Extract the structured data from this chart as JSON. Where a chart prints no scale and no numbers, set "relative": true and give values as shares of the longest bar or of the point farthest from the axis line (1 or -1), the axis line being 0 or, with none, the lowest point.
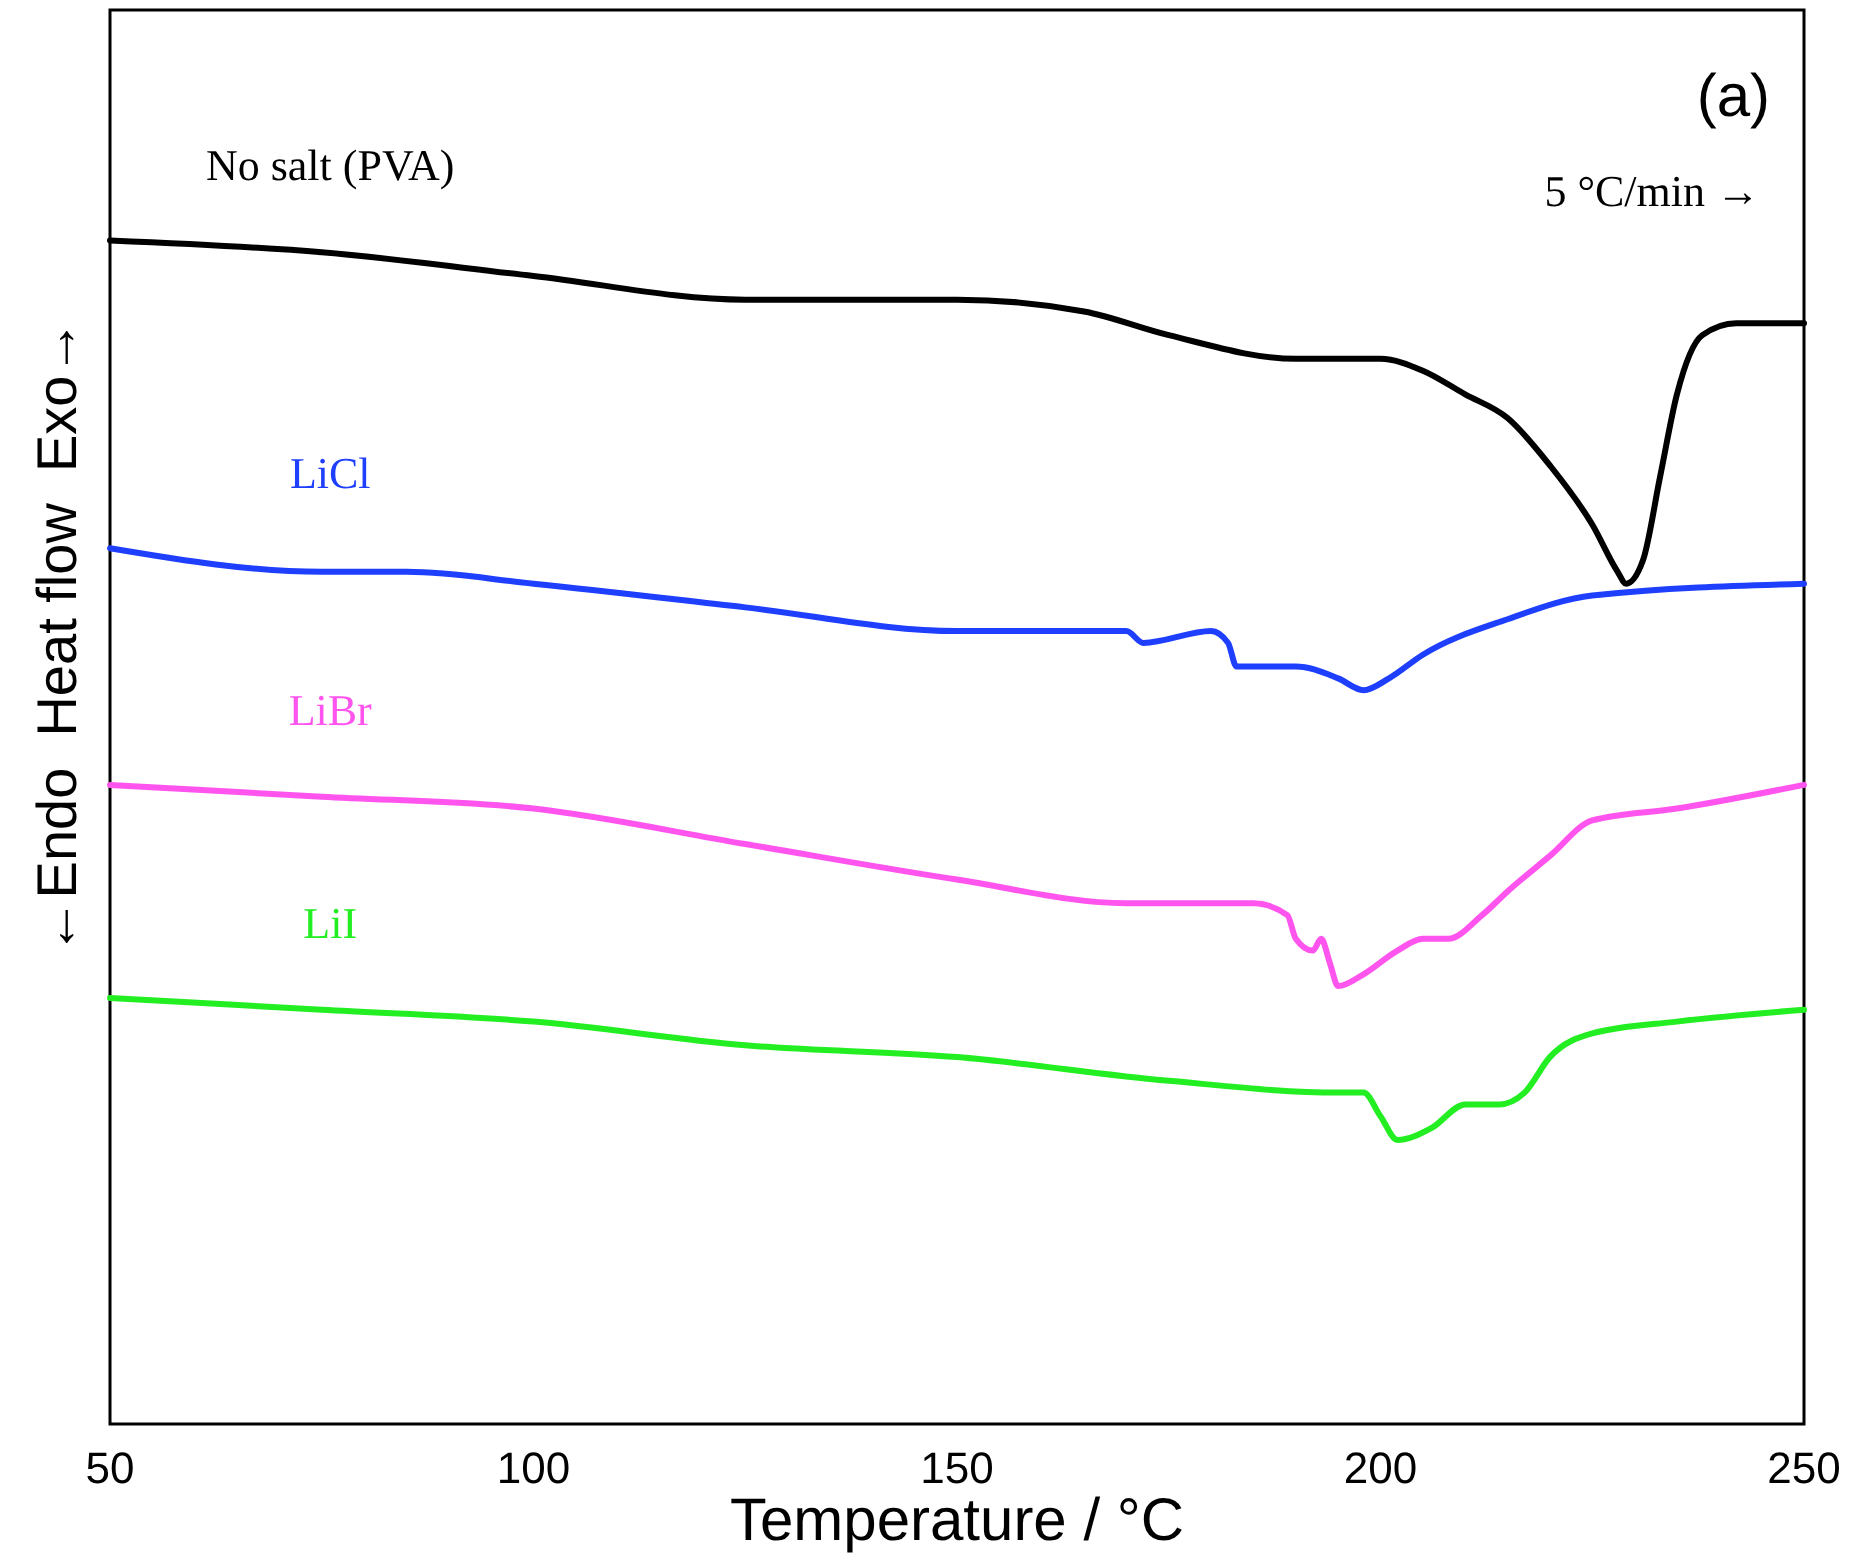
{
  "chart_data": {
    "type": "line",
    "relative": true,
    "xlabel": "Temperature / °C",
    "ylabel": "←Endo  Heat flow  Exo→",
    "xlim": [
      50,
      250
    ],
    "xticks": [
      50,
      100,
      150,
      200,
      250
    ],
    "tick_labels": "x",
    "grid": false,
    "annotations": [
      "(a)",
      "5 °C/min →"
    ],
    "series": [
      {
        "name": "No salt (PVA)",
        "color": "#000000",
        "x": [
          50,
          75,
          100,
          125,
          150,
          165,
          175,
          190,
          200,
          205,
          210,
          215,
          220,
          225,
          228,
          229,
          231,
          233,
          235,
          238,
          242,
          250
        ],
        "values": [
          1.0,
          0.99,
          0.97,
          0.95,
          0.95,
          0.94,
          0.92,
          0.9,
          0.9,
          0.89,
          0.87,
          0.85,
          0.81,
          0.76,
          0.72,
          0.71,
          0.73,
          0.8,
          0.87,
          0.92,
          0.93,
          0.93
        ]
      },
      {
        "name": "LiCl",
        "color": "#1f3fff",
        "x": [
          50,
          75,
          85,
          100,
          125,
          150,
          165,
          170,
          172,
          180,
          182,
          183,
          190,
          195,
          198,
          201,
          205,
          215,
          225,
          250
        ],
        "values": [
          0.74,
          0.72,
          0.72,
          0.71,
          0.69,
          0.67,
          0.67,
          0.67,
          0.66,
          0.67,
          0.66,
          0.64,
          0.64,
          0.63,
          0.62,
          0.63,
          0.65,
          0.68,
          0.7,
          0.71
        ]
      },
      {
        "name": "LiBr",
        "color": "#ff55ee",
        "x": [
          50,
          75,
          100,
          125,
          150,
          170,
          185,
          189,
          190,
          192,
          193,
          194,
          195,
          198,
          202,
          205,
          208,
          212,
          215,
          220,
          225,
          235,
          250
        ],
        "values": [
          0.54,
          0.53,
          0.52,
          0.49,
          0.46,
          0.44,
          0.44,
          0.43,
          0.41,
          0.4,
          0.41,
          0.39,
          0.37,
          0.38,
          0.4,
          0.41,
          0.41,
          0.43,
          0.45,
          0.48,
          0.51,
          0.52,
          0.54
        ]
      },
      {
        "name": "LiI",
        "color": "#22ee22",
        "x": [
          50,
          75,
          100,
          125,
          150,
          175,
          195,
          198,
          200,
          202,
          206,
          210,
          214,
          217,
          220,
          225,
          235,
          250
        ],
        "values": [
          0.36,
          0.35,
          0.34,
          0.32,
          0.31,
          0.29,
          0.28,
          0.28,
          0.26,
          0.24,
          0.25,
          0.27,
          0.27,
          0.28,
          0.31,
          0.33,
          0.34,
          0.35
        ]
      }
    ]
  }
}
